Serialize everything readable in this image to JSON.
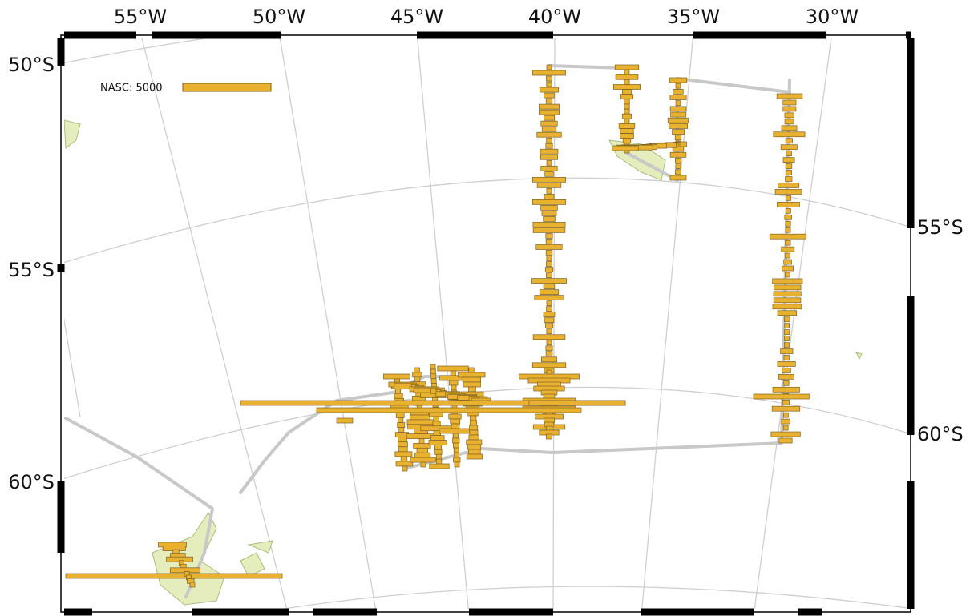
{
  "map": {
    "top_labels": [
      "55°W",
      "50°W",
      "45°W",
      "40°W",
      "35°W",
      "30°W"
    ],
    "left_labels": [
      "50°S",
      "55°S",
      "60°S"
    ],
    "right_labels": [
      "55°S",
      "60°S"
    ],
    "legend": {
      "label": "NASC: 5000"
    }
  }
}
